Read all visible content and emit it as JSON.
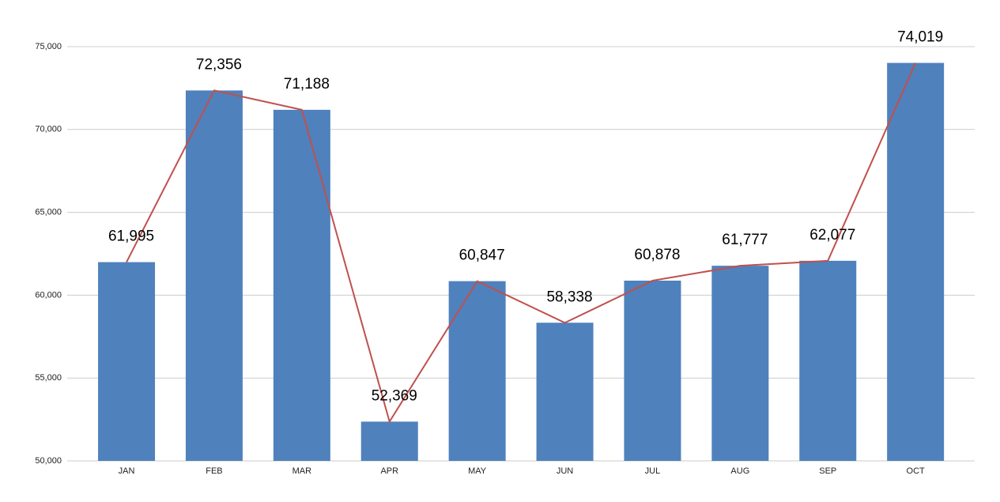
{
  "chart_data": {
    "type": "bar",
    "categories": [
      "JAN",
      "FEB",
      "MAR",
      "APR",
      "MAY",
      "JUN",
      "JUL",
      "AUG",
      "SEP",
      "OCT"
    ],
    "values": [
      61995,
      72356,
      71188,
      52369,
      60847,
      58338,
      60878,
      61777,
      62077,
      74019
    ],
    "value_labels": [
      "61,995",
      "72,356",
      "71,188",
      "52,369",
      "60,847",
      "58,338",
      "60,878",
      "61,777",
      "62,077",
      "74,019"
    ],
    "color": "#4f81bd",
    "line_color": "#c0504d",
    "ylim": [
      50000,
      75000
    ],
    "yticks": [
      {
        "value": 50000,
        "label": "50,000"
      },
      {
        "value": 55000,
        "label": "55,000"
      },
      {
        "value": 60000,
        "label": "60,000"
      },
      {
        "value": 65000,
        "label": "65,000"
      },
      {
        "value": 70000,
        "label": "70,000"
      },
      {
        "value": 75000,
        "label": "75,000"
      }
    ],
    "grid": true
  }
}
